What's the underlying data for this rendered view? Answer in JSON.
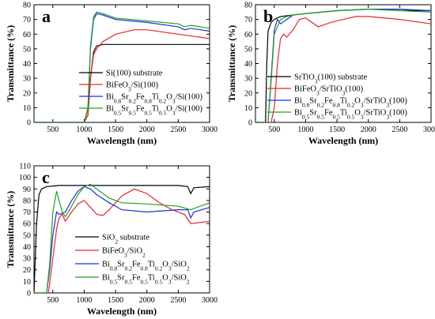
{
  "chart_data": [
    {
      "id": "a",
      "type": "line",
      "panel_label": "a",
      "xlabel": "Wavelength (nm)",
      "ylabel": "Transmittance (%)",
      "xlim": [
        200,
        3000
      ],
      "ylim": [
        0,
        80
      ],
      "xticks": [
        500,
        1000,
        1500,
        2000,
        2500,
        3000
      ],
      "yticks": [
        0,
        10,
        20,
        30,
        40,
        50,
        60,
        70,
        80
      ],
      "grid": false,
      "legend_position": "lower-right",
      "series": [
        {
          "name": "Si(100) substrate",
          "color": "#000000",
          "legend": [
            {
              "t": "Si(100) substrate"
            }
          ],
          "x": [
            200,
            1000,
            1060,
            1100,
            1150,
            1200,
            1300,
            1500,
            2000,
            2500,
            3000
          ],
          "y": [
            0,
            0,
            5,
            30,
            48,
            52,
            53,
            53,
            53,
            53,
            53
          ]
        },
        {
          "name": "BiFeO3/Si(100)",
          "color": "#e8262a",
          "legend": [
            {
              "t": "BiFeO"
            },
            {
              "t": "3",
              "s": 1
            },
            {
              "t": "/Si(100)"
            }
          ],
          "x": [
            200,
            1000,
            1060,
            1100,
            1150,
            1200,
            1300,
            1500,
            1800,
            2000,
            2500,
            3000
          ],
          "y": [
            0,
            0,
            5,
            30,
            46,
            50,
            55,
            60,
            63,
            63,
            60,
            57
          ]
        },
        {
          "name": "Bi0.8Sr0.2Fe0.8Ti0.2O3/Si(100)",
          "color": "#1f2fe0",
          "legend": [
            {
              "t": "Bi"
            },
            {
              "t": "0.8",
              "s": 1
            },
            {
              "t": "Sr"
            },
            {
              "t": "0.2",
              "s": 1
            },
            {
              "t": "Fe"
            },
            {
              "t": "0.8",
              "s": 1
            },
            {
              "t": "Ti"
            },
            {
              "t": "0.2",
              "s": 1
            },
            {
              "t": "O"
            },
            {
              "t": "3",
              "s": 1
            },
            {
              "t": "/Si(100)"
            }
          ],
          "x": [
            200,
            1000,
            1060,
            1100,
            1150,
            1200,
            1300,
            1500,
            2000,
            2500,
            2600,
            2700,
            3000
          ],
          "y": [
            0,
            0,
            10,
            50,
            70,
            74,
            73,
            70,
            68,
            65,
            63,
            64,
            62
          ]
        },
        {
          "name": "Bi0.5Sr0.5Fe0.5Ti0.5O3/Si(100)",
          "color": "#22a022",
          "legend": [
            {
              "t": "Bi"
            },
            {
              "t": "0.5",
              "s": 1
            },
            {
              "t": "Sr"
            },
            {
              "t": "0.5",
              "s": 1
            },
            {
              "t": "Fe"
            },
            {
              "t": "0.5",
              "s": 1
            },
            {
              "t": "Ti"
            },
            {
              "t": "0.5",
              "s": 1
            },
            {
              "t": "O"
            },
            {
              "t": "3",
              "s": 1
            },
            {
              "t": "/Si(100)"
            }
          ],
          "x": [
            200,
            1000,
            1060,
            1100,
            1150,
            1200,
            1300,
            1500,
            2000,
            2500,
            2600,
            2700,
            3000
          ],
          "y": [
            0,
            0,
            10,
            52,
            72,
            75,
            74,
            71,
            69,
            67,
            65,
            66,
            64
          ]
        }
      ]
    },
    {
      "id": "b",
      "type": "line",
      "panel_label": "b",
      "xlabel": "Wavelength (nm)",
      "ylabel": "Transmittance (%)",
      "xlim": [
        200,
        3000
      ],
      "ylim": [
        0,
        80
      ],
      "xticks": [
        500,
        1000,
        1500,
        2000,
        2500,
        3000
      ],
      "yticks": [
        0,
        10,
        20,
        30,
        40,
        50,
        60,
        70,
        80
      ],
      "grid": false,
      "legend_position": "lower-right",
      "series": [
        {
          "name": "SrTiO3(100) substrate",
          "color": "#000000",
          "legend": [
            {
              "t": "SrTiO"
            },
            {
              "t": "3",
              "s": 1
            },
            {
              "t": "(100) substrate"
            }
          ],
          "x": [
            200,
            360,
            380,
            400,
            450,
            500,
            600,
            800,
            1000,
            1500,
            2000,
            2500,
            2700,
            3000
          ],
          "y": [
            0,
            0,
            40,
            62,
            68,
            70,
            72,
            73,
            74,
            76,
            77,
            77,
            76,
            76
          ]
        },
        {
          "name": "BiFeO3/SrTiO3(100)",
          "color": "#e8262a",
          "legend": [
            {
              "t": "BiFeO"
            },
            {
              "t": "3",
              "s": 1
            },
            {
              "t": "/SrTiO"
            },
            {
              "t": "3",
              "s": 1
            },
            {
              "t": "(100)"
            }
          ],
          "x": [
            200,
            450,
            500,
            550,
            600,
            650,
            700,
            800,
            900,
            1000,
            1200,
            1400,
            1600,
            1800,
            2000,
            2500,
            3000
          ],
          "y": [
            0,
            0,
            10,
            40,
            57,
            60,
            58,
            63,
            70,
            71,
            65,
            68,
            70,
            72,
            72,
            70,
            67
          ]
        },
        {
          "name": "Bi0.8Sr0.2Fe0.8Ti0.2O3/SrTiO3(100)",
          "color": "#1f2fe0",
          "legend": [
            {
              "t": "Bi"
            },
            {
              "t": "0.8",
              "s": 1
            },
            {
              "t": "Sr"
            },
            {
              "t": "0.2",
              "s": 1
            },
            {
              "t": "Fe"
            },
            {
              "t": "0.8",
              "s": 1
            },
            {
              "t": "Ti"
            },
            {
              "t": "0.2",
              "s": 1
            },
            {
              "t": "O"
            },
            {
              "t": "3",
              "s": 1
            },
            {
              "t": "/SrTiO"
            },
            {
              "t": "3",
              "s": 1
            },
            {
              "t": "(100)"
            }
          ],
          "x": [
            200,
            400,
            450,
            500,
            550,
            600,
            700,
            800,
            1000,
            1500,
            2000,
            2500,
            3000
          ],
          "y": [
            0,
            0,
            30,
            63,
            70,
            67,
            70,
            73,
            74,
            76,
            77,
            77,
            76
          ]
        },
        {
          "name": "Bi0.5Sr0.5Fe0.5Ti0.5O3/SrTiO3(100)",
          "color": "#22a022",
          "legend": [
            {
              "t": "Bi"
            },
            {
              "t": "0.5",
              "s": 1
            },
            {
              "t": "Sr"
            },
            {
              "t": "0.5",
              "s": 1
            },
            {
              "t": "Fe"
            },
            {
              "t": "0.5",
              "s": 1
            },
            {
              "t": "Ti"
            },
            {
              "t": "0.5",
              "s": 1
            },
            {
              "t": "O"
            },
            {
              "t": "3",
              "s": 1
            },
            {
              "t": "/SrTiO"
            },
            {
              "t": "3",
              "s": 1
            },
            {
              "t": "(100)"
            }
          ],
          "x": [
            200,
            400,
            450,
            500,
            600,
            700,
            800,
            1000,
            1500,
            2000,
            2500,
            3000
          ],
          "y": [
            0,
            0,
            28,
            60,
            70,
            72,
            73,
            74,
            76,
            77,
            76,
            75
          ]
        }
      ]
    },
    {
      "id": "c",
      "type": "line",
      "panel_label": "c",
      "xlabel": "Wavelength (nm)",
      "ylabel": "Transmittance (%)",
      "xlim": [
        200,
        3000
      ],
      "ylim": [
        0,
        110
      ],
      "xticks": [
        500,
        1000,
        1500,
        2000,
        2500,
        3000
      ],
      "yticks": [
        0,
        10,
        20,
        30,
        40,
        50,
        60,
        70,
        80,
        90,
        100,
        110
      ],
      "grid": false,
      "legend_position": "lower-right",
      "series": [
        {
          "name": "SiO2 substrate",
          "color": "#000000",
          "legend": [
            {
              "t": "SiO"
            },
            {
              "t": "2",
              "s": 1
            },
            {
              "t": " substrate"
            }
          ],
          "x": [
            200,
            240,
            280,
            320,
            400,
            600,
            1000,
            1500,
            2000,
            2500,
            2650,
            2700,
            2750,
            3000
          ],
          "y": [
            0,
            60,
            85,
            90,
            92,
            93,
            93,
            93,
            93,
            93,
            92,
            86,
            91,
            92
          ]
        },
        {
          "name": "BiFeO3/SiO2",
          "color": "#e8262a",
          "legend": [
            {
              "t": "BiFeO"
            },
            {
              "t": "3",
              "s": 1
            },
            {
              "t": "/SiO"
            },
            {
              "t": "2",
              "s": 1
            }
          ],
          "x": [
            200,
            430,
            500,
            560,
            600,
            650,
            700,
            800,
            900,
            1000,
            1100,
            1200,
            1300,
            1400,
            1600,
            1800,
            2000,
            2200,
            2400,
            2600,
            2700,
            3000
          ],
          "y": [
            0,
            0,
            30,
            55,
            65,
            68,
            62,
            70,
            77,
            80,
            74,
            68,
            67,
            72,
            84,
            90,
            86,
            78,
            72,
            68,
            60,
            62
          ]
        },
        {
          "name": "Bi0.8Sr0.2Fe0.8Ti0.2O3/SiO2",
          "color": "#1f2fe0",
          "legend": [
            {
              "t": "Bi"
            },
            {
              "t": "0.8",
              "s": 1
            },
            {
              "t": "Sr"
            },
            {
              "t": "0.2",
              "s": 1
            },
            {
              "t": "Fe"
            },
            {
              "t": "0.8",
              "s": 1
            },
            {
              "t": "Ti"
            },
            {
              "t": "0.2",
              "s": 1
            },
            {
              "t": "O"
            },
            {
              "t": "3",
              "s": 1
            },
            {
              "t": "/SiO"
            },
            {
              "t": "2",
              "s": 1
            }
          ],
          "x": [
            200,
            400,
            450,
            500,
            560,
            600,
            700,
            800,
            900,
            1000,
            1100,
            1200,
            1400,
            1600,
            2000,
            2500,
            2650,
            2700,
            2750,
            3000
          ],
          "y": [
            0,
            0,
            20,
            50,
            70,
            68,
            70,
            80,
            88,
            92,
            90,
            85,
            78,
            72,
            70,
            72,
            72,
            65,
            70,
            74
          ]
        },
        {
          "name": "Bi0.5Sr0.5Fe0.5Ti0.5O3/SiO2",
          "color": "#22a022",
          "legend": [
            {
              "t": "Bi"
            },
            {
              "t": "0.5",
              "s": 1
            },
            {
              "t": "Sr"
            },
            {
              "t": "0.5",
              "s": 1
            },
            {
              "t": "Fe"
            },
            {
              "t": "0.5",
              "s": 1
            },
            {
              "t": "Ti"
            },
            {
              "t": "0.5",
              "s": 1
            },
            {
              "t": "O"
            },
            {
              "t": "3",
              "s": 1
            },
            {
              "t": "/SiO"
            },
            {
              "t": "2",
              "s": 1
            }
          ],
          "x": [
            200,
            400,
            450,
            500,
            560,
            600,
            650,
            700,
            800,
            900,
            1000,
            1100,
            1200,
            1400,
            1600,
            2000,
            2500,
            2700,
            3000
          ],
          "y": [
            0,
            0,
            25,
            70,
            88,
            80,
            70,
            66,
            75,
            85,
            92,
            94,
            90,
            82,
            78,
            77,
            75,
            72,
            78
          ]
        }
      ]
    }
  ]
}
